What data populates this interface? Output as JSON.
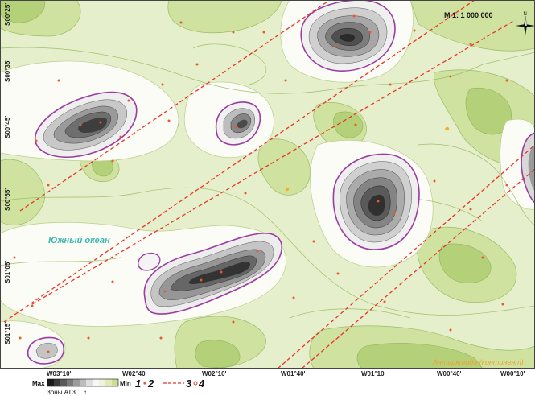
{
  "scale": "M 1: 1 000 000",
  "north": "N",
  "lat_labels": [
    "S00°25'",
    "S00°35'",
    "S00°45'",
    "S00°55'",
    "S01°05'",
    "S01°15'"
  ],
  "lon_labels": [
    "W03°10'",
    "W02°40'",
    "W02°10'",
    "W01°40'",
    "W01°10'",
    "W00°40'",
    "W00°10'"
  ],
  "ocean_label": "Южный океан",
  "continent_label": "Антарктида (континент)",
  "legend": {
    "max": "Max",
    "min": "Min",
    "zones": "Зоны АТЗ",
    "n1": "1",
    "n2": "2",
    "n3": "3",
    "n4": "4"
  },
  "colors": {
    "land_light": "#eef3d9",
    "land_mid": "#d4e6a9",
    "land_dark": "#b6d27b",
    "lowland": "#ffffff",
    "anomaly_dark": "#3a3a3a",
    "boundary": "#a03aa0",
    "fault": "#e8352a",
    "point": "#e85a2a",
    "ocean_text": "#3bb8b0",
    "continent_text": "#f0a030"
  }
}
